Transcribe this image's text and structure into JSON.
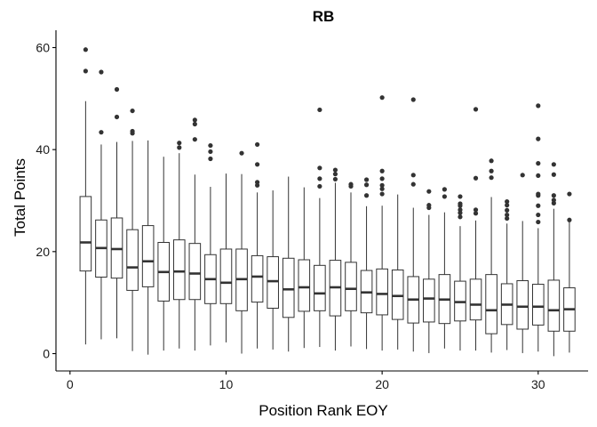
{
  "chart_data": {
    "type": "boxplot",
    "title": "RB",
    "xlabel": "Position Rank EOY",
    "ylabel": "Total Points",
    "xlim": [
      -0.9,
      33.2
    ],
    "ylim": [
      -3.4,
      63.4
    ],
    "x_ticks": [
      0,
      10,
      20,
      30
    ],
    "y_ticks": [
      0,
      20,
      40,
      60
    ],
    "grid": false,
    "colors": {
      "box_stroke": "#333333",
      "box_fill": "#ffffff",
      "axis": "#000000"
    },
    "boxes": [
      {
        "x": 1,
        "lower": 1.8,
        "q1": 16.2,
        "median": 21.8,
        "q3": 30.8,
        "upper": 49.5,
        "outliers": [
          55.4,
          59.6
        ]
      },
      {
        "x": 2,
        "lower": 2.8,
        "q1": 15.0,
        "median": 20.7,
        "q3": 26.2,
        "upper": 41.0,
        "outliers": [
          43.4,
          55.2
        ]
      },
      {
        "x": 3,
        "lower": 3.0,
        "q1": 14.8,
        "median": 20.5,
        "q3": 26.6,
        "upper": 41.5,
        "outliers": [
          46.4,
          51.8
        ]
      },
      {
        "x": 4,
        "lower": 0.5,
        "q1": 12.4,
        "median": 16.9,
        "q3": 24.3,
        "upper": 41.7,
        "outliers": [
          43.2,
          43.6,
          47.6
        ]
      },
      {
        "x": 5,
        "lower": -0.2,
        "q1": 13.1,
        "median": 18.1,
        "q3": 25.1,
        "upper": 41.8,
        "outliers": []
      },
      {
        "x": 6,
        "lower": 0.6,
        "q1": 10.3,
        "median": 16.0,
        "q3": 21.8,
        "upper": 38.6,
        "outliers": []
      },
      {
        "x": 7,
        "lower": 1.0,
        "q1": 10.6,
        "median": 16.1,
        "q3": 22.3,
        "upper": 39.3,
        "outliers": [
          40.4,
          41.3
        ]
      },
      {
        "x": 8,
        "lower": 0.6,
        "q1": 10.6,
        "median": 15.7,
        "q3": 21.6,
        "upper": 35.1,
        "outliers": [
          42.0,
          45.0,
          45.8
        ]
      },
      {
        "x": 9,
        "lower": 1.6,
        "q1": 9.8,
        "median": 14.6,
        "q3": 19.4,
        "upper": 32.7,
        "outliers": [
          38.2,
          39.6,
          40.8
        ]
      },
      {
        "x": 10,
        "lower": 2.2,
        "q1": 9.8,
        "median": 13.9,
        "q3": 20.5,
        "upper": 35.3,
        "outliers": []
      },
      {
        "x": 11,
        "lower": 0.0,
        "q1": 8.4,
        "median": 14.6,
        "q3": 20.5,
        "upper": 35.2,
        "outliers": [
          39.3
        ]
      },
      {
        "x": 12,
        "lower": 1.0,
        "q1": 10.1,
        "median": 15.1,
        "q3": 19.2,
        "upper": 31.6,
        "outliers": [
          33.0,
          33.6,
          37.1,
          41.0
        ]
      },
      {
        "x": 13,
        "lower": 0.8,
        "q1": 8.9,
        "median": 14.2,
        "q3": 19.0,
        "upper": 32.0,
        "outliers": []
      },
      {
        "x": 14,
        "lower": 0.4,
        "q1": 7.1,
        "median": 12.6,
        "q3": 18.7,
        "upper": 34.7,
        "outliers": []
      },
      {
        "x": 15,
        "lower": 1.1,
        "q1": 8.3,
        "median": 13.0,
        "q3": 18.4,
        "upper": 32.6,
        "outliers": []
      },
      {
        "x": 16,
        "lower": 1.3,
        "q1": 8.4,
        "median": 11.8,
        "q3": 17.3,
        "upper": 30.5,
        "outliers": [
          32.8,
          34.3,
          36.4,
          47.8
        ]
      },
      {
        "x": 17,
        "lower": 0.6,
        "q1": 7.4,
        "median": 13.0,
        "q3": 18.3,
        "upper": 33.5,
        "outliers": [
          34.2,
          35.2,
          36.0
        ]
      },
      {
        "x": 18,
        "lower": 1.4,
        "q1": 8.4,
        "median": 12.7,
        "q3": 17.9,
        "upper": 31.6,
        "outliers": [
          32.8,
          33.2
        ]
      },
      {
        "x": 19,
        "lower": 0.9,
        "q1": 8.0,
        "median": 12.0,
        "q3": 16.3,
        "upper": 28.9,
        "outliers": [
          31.0,
          33.1,
          34.1
        ]
      },
      {
        "x": 20,
        "lower": 0.6,
        "q1": 7.6,
        "median": 11.7,
        "q3": 16.6,
        "upper": 29.0,
        "outliers": [
          31.3,
          32.3,
          33.0,
          34.3,
          35.8,
          50.2
        ]
      },
      {
        "x": 21,
        "lower": 0.8,
        "q1": 6.7,
        "median": 11.3,
        "q3": 16.4,
        "upper": 31.2,
        "outliers": []
      },
      {
        "x": 22,
        "lower": 0.4,
        "q1": 6.0,
        "median": 10.6,
        "q3": 15.1,
        "upper": 28.6,
        "outliers": [
          33.2,
          35.0,
          49.8
        ]
      },
      {
        "x": 23,
        "lower": 0.1,
        "q1": 6.2,
        "median": 10.8,
        "q3": 14.6,
        "upper": 27.2,
        "outliers": [
          28.6,
          29.1,
          31.8
        ]
      },
      {
        "x": 24,
        "lower": 1.0,
        "q1": 5.9,
        "median": 10.6,
        "q3": 15.5,
        "upper": 27.7,
        "outliers": [
          30.8,
          32.2
        ]
      },
      {
        "x": 25,
        "lower": 0.6,
        "q1": 6.4,
        "median": 10.1,
        "q3": 14.2,
        "upper": 25.0,
        "outliers": [
          26.8,
          27.6,
          28.2,
          29.0,
          29.4,
          30.8
        ]
      },
      {
        "x": 26,
        "lower": 0.6,
        "q1": 6.6,
        "median": 9.6,
        "q3": 14.6,
        "upper": 26.1,
        "outliers": [
          27.5,
          28.2,
          34.4,
          47.9
        ]
      },
      {
        "x": 27,
        "lower": 0.2,
        "q1": 3.9,
        "median": 8.5,
        "q3": 15.5,
        "upper": 30.7,
        "outliers": [
          34.5,
          35.8,
          37.8
        ]
      },
      {
        "x": 28,
        "lower": 0.7,
        "q1": 5.7,
        "median": 9.6,
        "q3": 13.7,
        "upper": 25.5,
        "outliers": [
          26.5,
          27.2,
          28.1,
          29.1,
          29.8
        ]
      },
      {
        "x": 29,
        "lower": 0.1,
        "q1": 4.8,
        "median": 9.2,
        "q3": 14.3,
        "upper": 26.0,
        "outliers": [
          35.0
        ]
      },
      {
        "x": 30,
        "lower": 0.4,
        "q1": 5.6,
        "median": 9.2,
        "q3": 13.6,
        "upper": 24.6,
        "outliers": [
          25.8,
          27.2,
          29.0,
          31.0,
          31.3,
          34.9,
          37.3,
          42.1,
          48.6
        ]
      },
      {
        "x": 31,
        "lower": -0.5,
        "q1": 4.4,
        "median": 8.5,
        "q3": 14.4,
        "upper": 28.4,
        "outliers": [
          29.5,
          30.1,
          31.0,
          35.1,
          37.1
        ]
      },
      {
        "x": 32,
        "lower": 0.2,
        "q1": 4.4,
        "median": 8.7,
        "q3": 12.9,
        "upper": 25.8,
        "outliers": [
          26.2,
          31.3
        ]
      }
    ]
  }
}
